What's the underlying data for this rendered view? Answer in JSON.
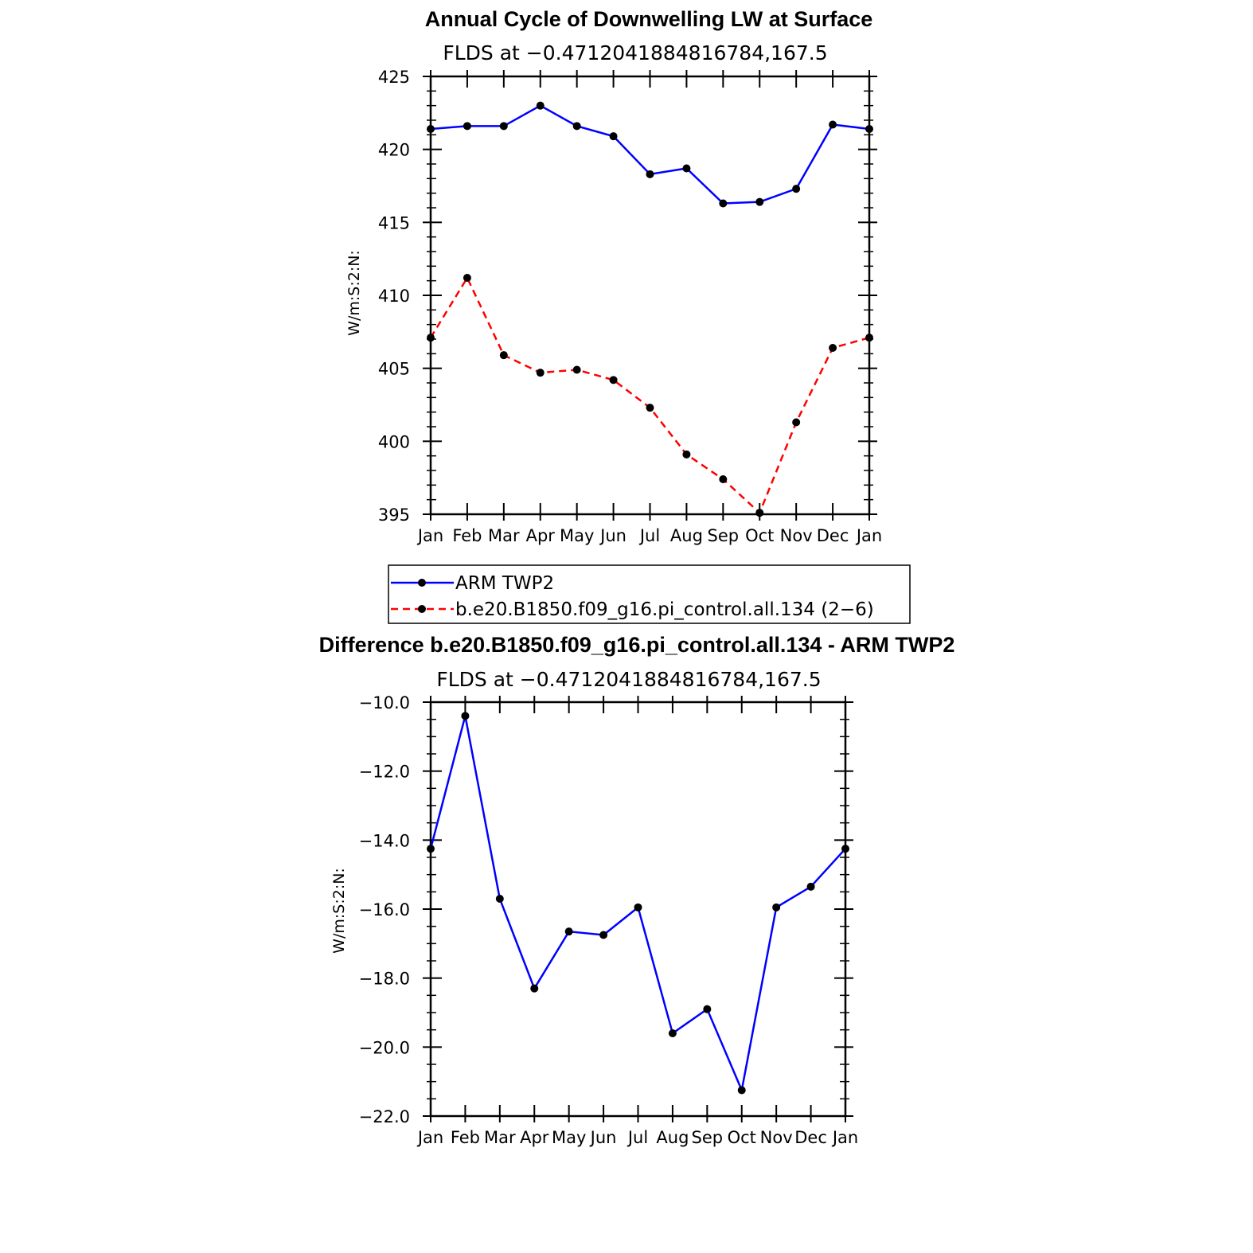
{
  "chart_data": [
    {
      "type": "line",
      "title": "Annual Cycle of Downwelling LW at Surface",
      "subtitle": "FLDS at −0.4712041884816784,167.5",
      "ylabel": "W/m:S:2:N:",
      "xlabel": "",
      "categories": [
        "Jan",
        "Feb",
        "Mar",
        "Apr",
        "May",
        "Jun",
        "Jul",
        "Aug",
        "Sep",
        "Oct",
        "Nov",
        "Dec",
        "Jan"
      ],
      "ylim": [
        395,
        425
      ],
      "yticks": [
        395,
        400,
        405,
        410,
        415,
        420,
        425
      ],
      "ytick_labels": [
        "395",
        "400",
        "405",
        "410",
        "415",
        "420",
        "425"
      ],
      "grid": false,
      "legend_position": "bottom",
      "series": [
        {
          "name": "ARM TWP2",
          "color": "#0000ff",
          "dash": "solid",
          "values": [
            421.4,
            421.6,
            421.6,
            423.0,
            421.6,
            420.9,
            418.3,
            418.7,
            416.3,
            416.4,
            417.3,
            421.7,
            421.4
          ]
        },
        {
          "name": "b.e20.B1850.f09_g16.pi_control.all.134 (2−6)",
          "color": "#ff0000",
          "dash": "dashed",
          "values": [
            407.1,
            411.2,
            405.9,
            404.7,
            404.9,
            404.2,
            402.3,
            399.1,
            397.4,
            395.1,
            401.3,
            406.4,
            407.1
          ]
        }
      ]
    },
    {
      "type": "line",
      "title": "Difference b.e20.B1850.f09_g16.pi_control.all.134 - ARM TWP2",
      "subtitle": "FLDS at −0.4712041884816784,167.5",
      "ylabel": "W/m:S:2:N:",
      "xlabel": "",
      "categories": [
        "Jan",
        "Feb",
        "Mar",
        "Apr",
        "May",
        "Jun",
        "Jul",
        "Aug",
        "Sep",
        "Oct",
        "Nov",
        "Dec",
        "Jan"
      ],
      "ylim": [
        -22.0,
        -10.0
      ],
      "yticks": [
        -22,
        -20,
        -18,
        -16,
        -14,
        -12,
        -10
      ],
      "ytick_labels": [
        "−22.0",
        "−20.0",
        "−18.0",
        "−16.0",
        "−14.0",
        "−12.0",
        "−10.0"
      ],
      "grid": false,
      "series": [
        {
          "name": "Difference",
          "color": "#0000ff",
          "dash": "solid",
          "values": [
            -14.25,
            -10.4,
            -15.7,
            -18.3,
            -16.65,
            -16.75,
            -15.95,
            -19.6,
            -18.9,
            -21.25,
            -15.95,
            -15.35,
            -14.25
          ]
        }
      ]
    }
  ]
}
